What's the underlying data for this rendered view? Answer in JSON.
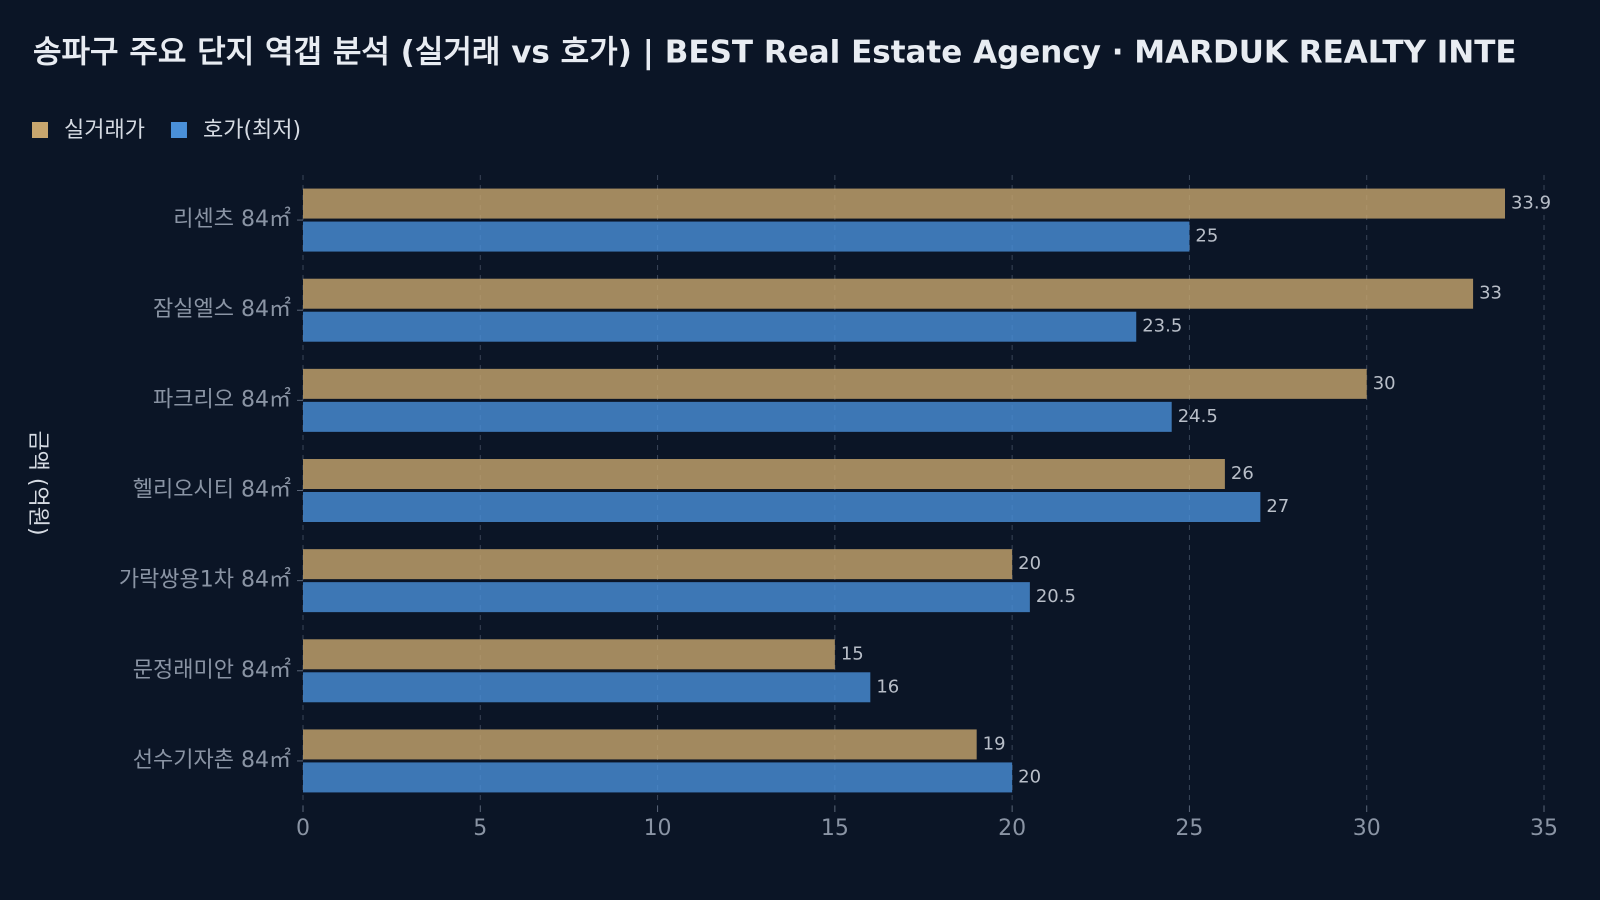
{
  "chart_data": {
    "type": "bar",
    "orientation": "horizontal",
    "title": "송파구 주요 단지 역갭 분석 (실거래 vs 호가) | BEST Real Estate Agency · MARDUK REALTY INTE",
    "y_label": "금액 (억원)",
    "categories": [
      "리센츠 84㎡",
      "잠실엘스 84㎡",
      "파크리오 84㎡",
      "헬리오시티 84㎡",
      "가락쌍용1차 84㎡",
      "문정래미안 84㎡",
      "선수기자촌 84㎡"
    ],
    "series": [
      {
        "name": "실거래가",
        "color": "#c8a66e",
        "values": [
          33.9,
          33,
          30,
          26,
          20,
          15,
          19
        ]
      },
      {
        "name": "호가(최저)",
        "color": "#4a90d9",
        "values": [
          25,
          23.5,
          24.5,
          27,
          20.5,
          16,
          20
        ]
      }
    ],
    "xlim": [
      0,
      35
    ],
    "xticks": [
      0,
      5,
      10,
      15,
      20,
      25,
      30,
      35
    ],
    "grid": true,
    "legend": "top-left"
  }
}
